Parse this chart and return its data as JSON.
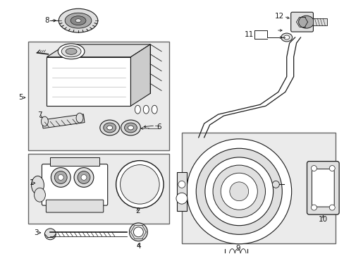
{
  "bg_color": "#ffffff",
  "line_color": "#1a1a1a",
  "box_fill": "#e8e8e8",
  "figsize": [
    4.89,
    3.6
  ],
  "dpi": 100
}
